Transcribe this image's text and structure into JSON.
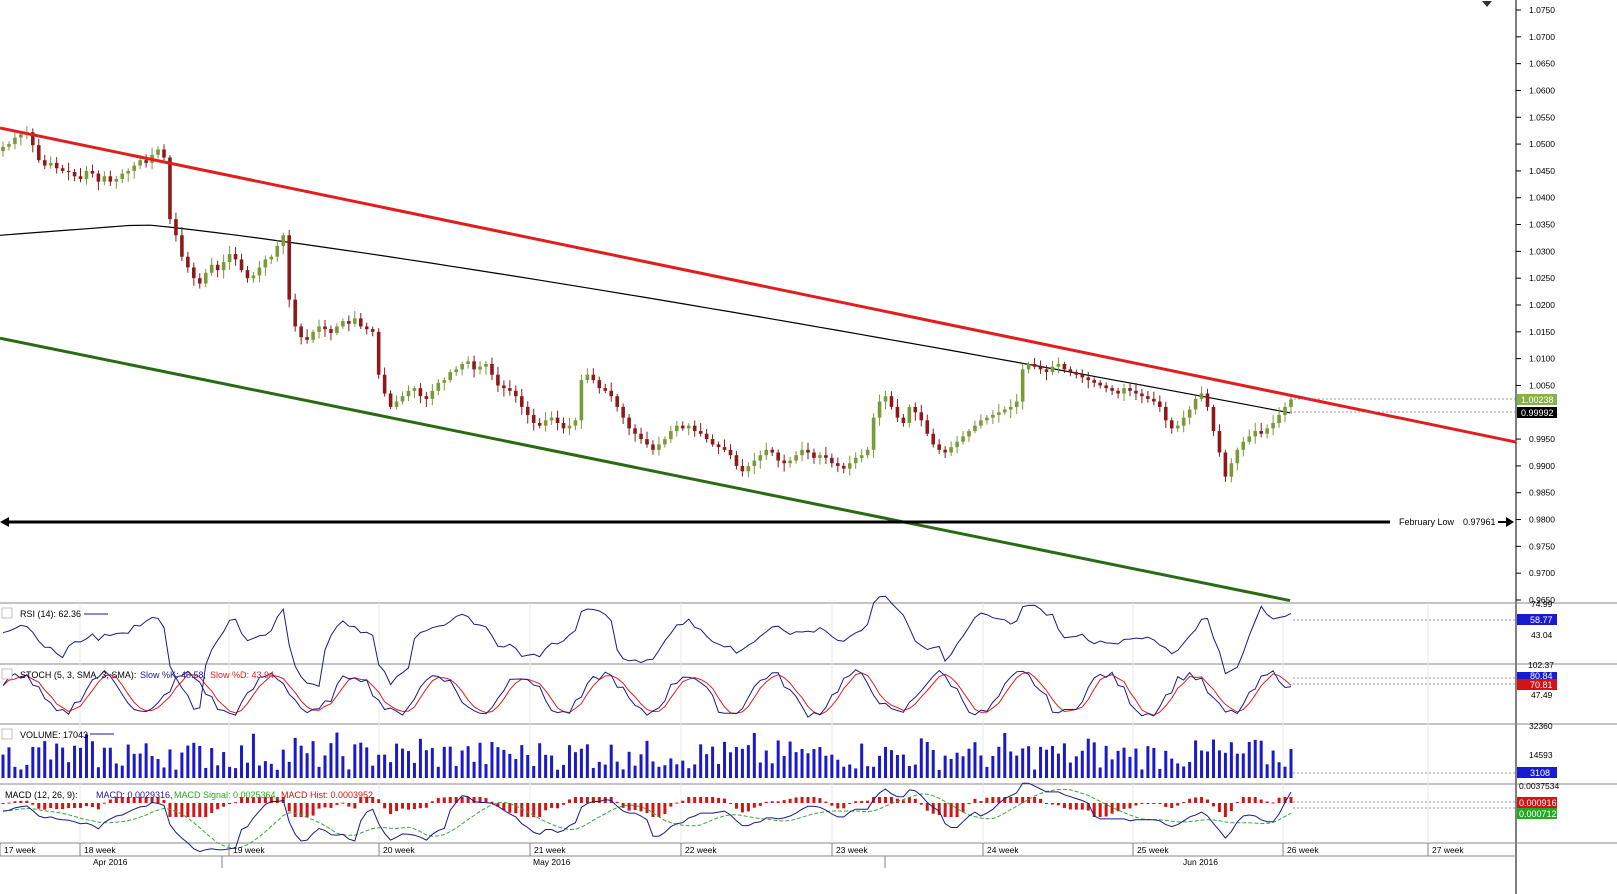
{
  "colors": {
    "up": "#7a9a3a",
    "down": "#8b1a1a",
    "resistance": "#e21d1d",
    "support": "#2a6a12",
    "ma": "#000000",
    "rsi": "#1a1a8c",
    "stochK": "#1a1a8c",
    "stochD": "#e21d1d",
    "volume": "#1a1ac8",
    "macdHistUp": "#d21414",
    "macdSignal": "#33aa33",
    "label_blue": "#1a1ad2",
    "label_red": "#d21414",
    "label_green": "#22aa22",
    "label_black": "#000000"
  },
  "price_axis": {
    "ticks": [
      "1.0750",
      "1.0700",
      "1.0650",
      "1.0600",
      "1.0550",
      "1.0500",
      "1.0450",
      "1.0400",
      "1.0350",
      "1.0300",
      "1.0250",
      "1.0200",
      "1.0150",
      "1.0100",
      "1.0050",
      "0.9950",
      "0.9900",
      "0.9850",
      "0.9800",
      "0.9750",
      "0.9700",
      "0.9650"
    ],
    "range": [
      0.965,
      1.075
    ],
    "current_price": "1.00238",
    "ma_value": "0.99992"
  },
  "annotations": {
    "february_low_label": "February Low",
    "february_low_value": "0.97961"
  },
  "indicators": {
    "rsi": {
      "label": "RSI (14): 62.36",
      "axis_top": "74.99",
      "axis_mid": "43.04",
      "value_box": "58.77"
    },
    "stoch": {
      "label_prefix": "STOCH (5, 3, SMA, 3, SMA):",
      "k_label": "Slow %K: 40.58,",
      "d_label": "Slow %D: 43.94",
      "axis_top": "102.37",
      "axis_mid": "47.49",
      "k_box": "70.81",
      "d_box": "80.84"
    },
    "volume": {
      "label": "VOLUME: 17043",
      "axis_top": "32360",
      "axis_mid": "14593",
      "value_box": "3108"
    },
    "macd": {
      "label_prefix": "MACD (12, 26, 9):",
      "macd_label": "MACD: 0.0029316,",
      "signal_label": "MACD Signal: 0.0025364,",
      "hist_label": "MACD Hist: 0.0003952",
      "axis_top": "0.0037534",
      "box_red": "0.0009162",
      "box_green": "0.0007123"
    }
  },
  "time_axis": {
    "weeks": [
      "17 week",
      "18 week",
      "19 week",
      "20 week",
      "21 week",
      "22 week",
      "23 week",
      "24 week",
      "25 week",
      "26 week",
      "27 week"
    ],
    "months": [
      "Apr 2016",
      "May 2016",
      "Jun 2016"
    ]
  },
  "chart_data": {
    "type": "candlestick",
    "title": "",
    "ylim": [
      0.965,
      1.075
    ],
    "trendlines": [
      {
        "name": "resistance",
        "from": [
          "17 week",
          1.053
        ],
        "to": [
          "27 week",
          0.9945
        ]
      },
      {
        "name": "support",
        "from": [
          "17 week",
          1.014
        ],
        "to": [
          "26 week",
          0.965
        ]
      }
    ],
    "horizontal_levels": [
      {
        "label": "February Low",
        "value": 0.97961
      }
    ],
    "last_close": 1.00238,
    "moving_average_last": 0.99992,
    "closes": [
      1.0495,
      1.05,
      1.0512,
      1.0518,
      1.0522,
      1.0498,
      1.047,
      1.046,
      1.0465,
      1.0455,
      1.045,
      1.0448,
      1.044,
      1.0435,
      1.045,
      1.0445,
      1.043,
      1.044,
      1.043,
      1.0435,
      1.0445,
      1.045,
      1.046,
      1.047,
      1.0465,
      1.048,
      1.049,
      1.0475,
      1.036,
      1.033,
      1.029,
      1.027,
      1.025,
      1.024,
      1.026,
      1.0275,
      1.0265,
      1.028,
      1.0295,
      1.0285,
      1.0265,
      1.025,
      1.0255,
      1.027,
      1.0285,
      1.029,
      1.031,
      1.033,
      1.021,
      1.016,
      1.014,
      1.0135,
      1.015,
      1.016,
      1.0155,
      1.0148,
      1.016,
      1.017,
      1.0165,
      1.0175,
      1.016,
      1.0155,
      1.015,
      1.007,
      1.0035,
      1.001,
      1.002,
      1.003,
      1.004,
      1.0045,
      1.003,
      1.0025,
      1.004,
      1.0055,
      1.006,
      1.0075,
      1.008,
      1.009,
      1.0095,
      1.008,
      1.0085,
      1.009,
      1.007,
      1.005,
      1.0045,
      1.004,
      1.003,
      1.001,
      0.9995,
      0.998,
      0.9975,
      0.9985,
      0.999,
      0.998,
      0.997,
      0.9975,
      0.9985,
      1.006,
      1.007,
      1.006,
      1.0045,
      1.004,
      1.003,
      1.001,
      0.999,
      0.997,
      0.996,
      0.995,
      0.994,
      0.993,
      0.994,
      0.995,
      0.9965,
      0.9975,
      0.997,
      0.9975,
      0.9965,
      0.996,
      0.995,
      0.994,
      0.9935,
      0.993,
      0.992,
      0.99,
      0.989,
      0.99,
      0.991,
      0.992,
      0.993,
      0.9925,
      0.991,
      0.9905,
      0.991,
      0.992,
      0.993,
      0.9925,
      0.9915,
      0.992,
      0.9915,
      0.9905,
      0.99,
      0.9895,
      0.9905,
      0.9915,
      0.992,
      0.993,
      0.999,
      1.002,
      1.003,
      1.001,
      0.999,
      0.998,
      1.001,
      1.0,
      0.9985,
      0.996,
      0.994,
      0.993,
      0.9925,
      0.9935,
      0.9945,
      0.9955,
      0.9965,
      0.9975,
      0.9985,
      0.999,
      0.9995,
      1.0,
      1.0005,
      1.001,
      1.002,
      1.008,
      1.009,
      1.0085,
      1.008,
      1.0075,
      1.0085,
      1.009,
      1.008,
      1.0075,
      1.007,
      1.0065,
      1.006,
      1.0055,
      1.005,
      1.0045,
      1.004,
      1.0035,
      1.0045,
      1.004,
      1.0035,
      1.003,
      1.0025,
      1.002,
      1.001,
      0.9985,
      0.997,
      0.9975,
      0.999,
      1.0005,
      1.0025,
      1.0035,
      1.001,
      0.9965,
      0.9925,
      0.988,
      0.9905,
      0.993,
      0.9945,
      0.9955,
      0.9965,
      0.996,
      0.997,
      0.998,
      0.9995,
      1.001,
      1.0024
    ]
  }
}
